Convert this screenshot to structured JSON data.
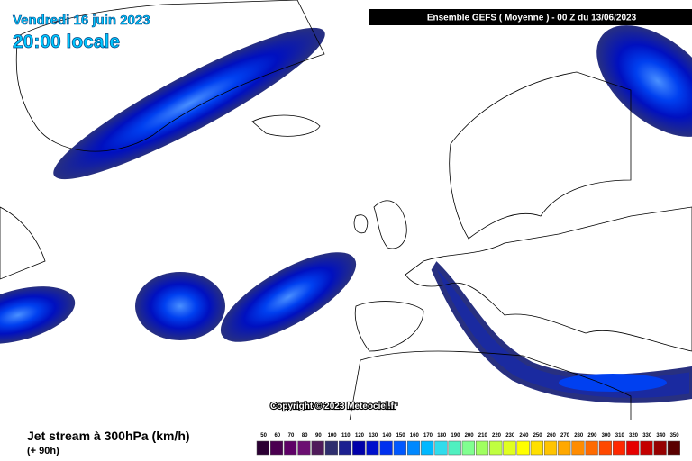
{
  "header": {
    "date": "Vendredi 16 juin 2023",
    "time": "20:00 locale",
    "model": "Ensemble GEFS  ( Moyenne )  -  00 Z du 13/06/2023"
  },
  "copyright": "Copyright © 2023 Meteociel.fr",
  "footer": {
    "title": "Jet stream à 300hPa (km/h)",
    "lead": "(+ 90h)"
  },
  "legend": {
    "values": [
      50,
      60,
      70,
      80,
      90,
      100,
      110,
      120,
      130,
      140,
      150,
      160,
      170,
      180,
      190,
      200,
      210,
      220,
      230,
      240,
      250,
      260,
      270,
      280,
      290,
      300,
      310,
      320,
      330,
      340,
      350
    ],
    "colors": [
      "#2b0033",
      "#4a0050",
      "#5e0066",
      "#6c0f72",
      "#4f1a5a",
      "#2e2e6e",
      "#1c2090",
      "#0000aa",
      "#0010cc",
      "#0030ee",
      "#0058ff",
      "#0088ff",
      "#00b8ff",
      "#30dcec",
      "#50f0c0",
      "#80ff90",
      "#a0ff60",
      "#c0ff40",
      "#e0ff20",
      "#ffff00",
      "#ffe000",
      "#ffc400",
      "#ffa800",
      "#ff8c00",
      "#ff6a00",
      "#ff4800",
      "#ff2800",
      "#e60000",
      "#c40000",
      "#960000",
      "#5a0000"
    ]
  }
}
